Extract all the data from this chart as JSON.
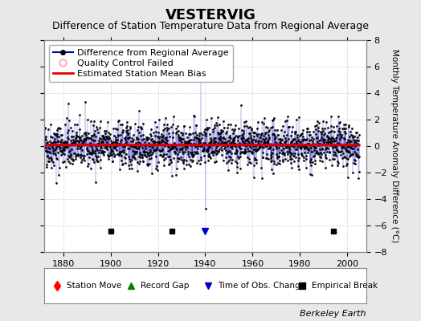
{
  "title": "VESTERVIG",
  "subtitle": "Difference of Station Temperature Data from Regional Average",
  "ylabel_right": "Monthly Temperature Anomaly Difference (°C)",
  "xlim": [
    1872,
    2008
  ],
  "ylim": [
    -8,
    8
  ],
  "yticks": [
    -8,
    -6,
    -4,
    -2,
    0,
    2,
    4,
    6,
    8
  ],
  "xticks": [
    1880,
    1900,
    1920,
    1940,
    1960,
    1980,
    2000
  ],
  "x_start": 1872,
  "x_end": 2005,
  "bias_value": 0.08,
  "background_color": "#e8e8e8",
  "plot_bg_color": "#ffffff",
  "line_color": "#0000cc",
  "fill_color": "#aaaadd",
  "bias_color": "#dd0000",
  "marker_color": "#000000",
  "empirical_break_years": [
    1900,
    1926,
    1994
  ],
  "empirical_break_y": -6.4,
  "obs_change_years": [
    1940
  ],
  "seed": 42,
  "title_fontsize": 13,
  "subtitle_fontsize": 9,
  "tick_fontsize": 8,
  "legend_fontsize": 8,
  "watermark": "Berkeley Earth",
  "watermark_fontsize": 8
}
